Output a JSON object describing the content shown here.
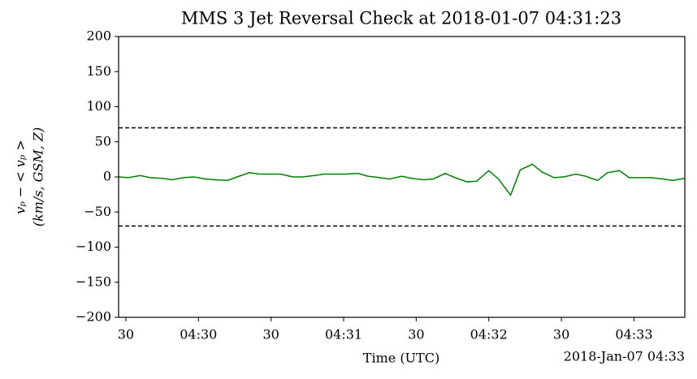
{
  "chart_data": {
    "type": "line",
    "title": "MMS 3 Jet Reversal Check at 2018-01-07 04:31:23",
    "xlabel": "Time (UTC)",
    "x_offset_label": "2018-Jan-07 04:33",
    "ylabel": [
      "vₚ − < vₚ >",
      "(km/s, GSM, Z)"
    ],
    "color": "#008000",
    "x": [
      "04:29:27",
      "04:29:31",
      "04:29:36",
      "04:29:40",
      "04:29:45",
      "04:29:49",
      "04:29:54",
      "04:29:58",
      "04:30:03",
      "04:30:07",
      "04:30:12",
      "04:30:16",
      "04:30:21",
      "04:30:25",
      "04:30:30",
      "04:30:34",
      "04:30:39",
      "04:30:43",
      "04:30:48",
      "04:30:52",
      "04:30:57",
      "04:31:01",
      "04:31:06",
      "04:31:10",
      "04:31:15",
      "04:31:19",
      "04:31:24",
      "04:31:28",
      "04:31:33",
      "04:31:37",
      "04:31:42",
      "04:31:46",
      "04:31:51",
      "04:31:55",
      "04:32:00",
      "04:32:04",
      "04:32:09",
      "04:32:13",
      "04:32:18",
      "04:32:22",
      "04:32:27",
      "04:32:31",
      "04:32:36",
      "04:32:40",
      "04:32:45",
      "04:32:49",
      "04:32:54",
      "04:32:58",
      "04:33:03",
      "04:33:07",
      "04:33:12",
      "04:33:16",
      "04:33:21"
    ],
    "values": [
      0,
      -1,
      2,
      -1,
      -2,
      -4,
      -1,
      0,
      -3,
      -4,
      -5,
      0,
      6,
      4,
      4,
      4,
      0,
      0,
      2,
      4,
      4,
      4,
      5,
      1,
      -1,
      -3,
      1,
      -2,
      -4,
      -3,
      5,
      -1,
      -7,
      -6,
      9,
      -3,
      -26,
      10,
      18,
      7,
      -1,
      0,
      4,
      1,
      -5,
      6,
      9,
      -1,
      -1,
      -1,
      -3,
      -5,
      -2
    ],
    "hlines": [
      70,
      -70
    ],
    "xlim": [
      "04:29:27",
      "04:33:21"
    ],
    "xticks": [
      {
        "value": "04:29:30",
        "label": "30"
      },
      {
        "value": "04:30:00",
        "label": "04:30"
      },
      {
        "value": "04:30:30",
        "label": "30"
      },
      {
        "value": "04:31:00",
        "label": "04:31"
      },
      {
        "value": "04:31:30",
        "label": "30"
      },
      {
        "value": "04:32:00",
        "label": "04:32"
      },
      {
        "value": "04:32:30",
        "label": "30"
      },
      {
        "value": "04:33:00",
        "label": "04:33"
      }
    ],
    "ylim": [
      -200,
      200
    ],
    "yticks": [
      {
        "value": -200,
        "label": "−200"
      },
      {
        "value": -150,
        "label": "−150"
      },
      {
        "value": -100,
        "label": "−100"
      },
      {
        "value": -50,
        "label": "−50"
      },
      0,
      50,
      100,
      150,
      200
    ]
  }
}
